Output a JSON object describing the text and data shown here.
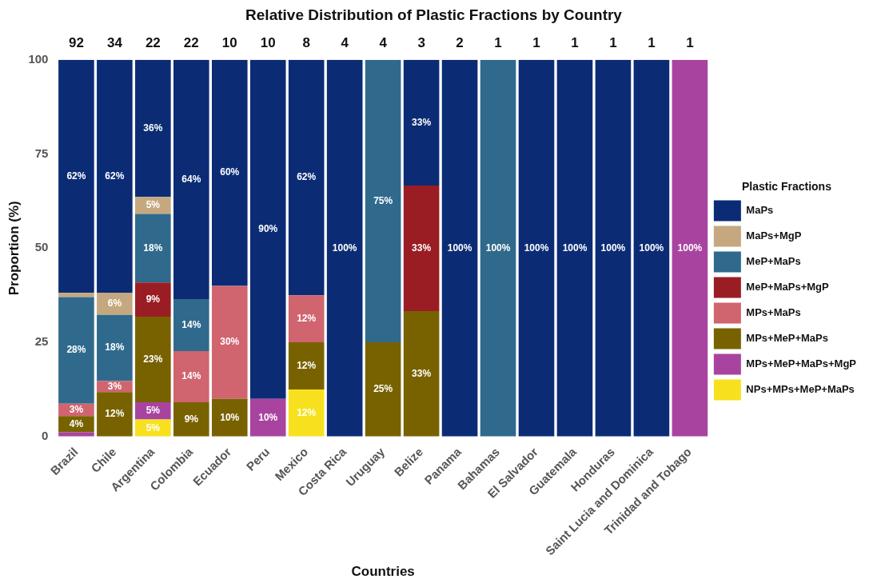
{
  "chart_data": {
    "type": "bar",
    "title": "Relative Distribution of Plastic Fractions by Country",
    "xlabel": "Countries",
    "ylabel": "Proportion (%)",
    "legend_title": "Plastic Fractions",
    "categories": [
      "Brazil",
      "Chile",
      "Argentina",
      "Colombia",
      "Ecuador",
      "Peru",
      "Mexico",
      "Costa Rica",
      "Uruguay",
      "Belize",
      "Panama",
      "Bahamas",
      "El Salvador",
      "Guatemala",
      "Honduras",
      "Saint Lucia and Dominica",
      "Trinidad and Tobago"
    ],
    "stacked": true,
    "legend": "right",
    "ylim": [
      0,
      100
    ],
    "yticks": [
      0,
      25,
      50,
      75,
      100
    ],
    "series": [
      {
        "name": "NPs+MPs+MeP+MaPs",
        "color": "#f7e11e",
        "values": [
          null,
          null,
          4.5,
          null,
          null,
          null,
          12.5,
          null,
          null,
          null,
          null,
          null,
          null,
          null,
          null,
          null,
          null
        ],
        "value_labels": [
          null,
          null,
          "5%",
          null,
          null,
          null,
          "12%",
          null,
          null,
          null,
          null,
          null,
          null,
          null,
          null,
          null,
          null
        ]
      },
      {
        "name": "MPs+MeP+MaPs+MgP",
        "color": "#a8449f",
        "values": [
          1.1,
          null,
          4.6,
          null,
          null,
          10,
          null,
          null,
          null,
          null,
          null,
          null,
          null,
          null,
          null,
          null,
          100
        ],
        "value_labels": [
          null,
          null,
          "5%",
          null,
          null,
          "10%",
          null,
          null,
          null,
          null,
          null,
          null,
          null,
          null,
          null,
          null,
          "100%"
        ]
      },
      {
        "name": "MPs+MeP+MaPs",
        "color": "#786200",
        "values": [
          4.3,
          11.8,
          22.7,
          9.1,
          10,
          null,
          12.5,
          null,
          25,
          33.3,
          null,
          null,
          null,
          null,
          null,
          null,
          null
        ],
        "value_labels": [
          "4%",
          "12%",
          "23%",
          "9%",
          "10%",
          null,
          "12%",
          null,
          "25%",
          "33%",
          null,
          null,
          null,
          null,
          null,
          null,
          null
        ]
      },
      {
        "name": "MPs+MaPs",
        "color": "#d0646f",
        "values": [
          3.3,
          2.9,
          null,
          13.6,
          30,
          null,
          12.5,
          null,
          null,
          null,
          null,
          null,
          null,
          null,
          null,
          null,
          null
        ],
        "value_labels": [
          "3%",
          "3%",
          null,
          "14%",
          "30%",
          null,
          "12%",
          null,
          null,
          null,
          null,
          null,
          null,
          null,
          null,
          null,
          null
        ]
      },
      {
        "name": "MeP+MaPs+MgP",
        "color": "#9a1d24",
        "values": [
          null,
          null,
          9.1,
          null,
          null,
          null,
          null,
          null,
          null,
          33.3,
          null,
          null,
          null,
          null,
          null,
          null,
          null
        ],
        "value_labels": [
          null,
          null,
          "9%",
          null,
          null,
          null,
          null,
          null,
          null,
          "33%",
          null,
          null,
          null,
          null,
          null,
          null,
          null
        ]
      },
      {
        "name": "MeP+MaPs",
        "color": "#2f6a8c",
        "values": [
          28.3,
          17.6,
          18.2,
          13.6,
          null,
          null,
          null,
          null,
          75,
          null,
          null,
          100,
          null,
          null,
          null,
          null,
          null
        ],
        "value_labels": [
          "28%",
          "18%",
          "18%",
          "14%",
          null,
          null,
          null,
          null,
          "75%",
          null,
          null,
          "100%",
          null,
          null,
          null,
          null,
          null
        ]
      },
      {
        "name": "MaPs+MgP",
        "color": "#c5a87f",
        "values": [
          1.1,
          5.9,
          4.5,
          null,
          null,
          null,
          null,
          null,
          null,
          null,
          null,
          null,
          null,
          null,
          null,
          null,
          null
        ],
        "value_labels": [
          null,
          "6%",
          "5%",
          null,
          null,
          null,
          null,
          null,
          null,
          null,
          null,
          null,
          null,
          null,
          null,
          null,
          null
        ]
      },
      {
        "name": "MaPs",
        "color": "#0b2c75",
        "values": [
          61.9,
          61.8,
          36.4,
          63.7,
          60,
          90,
          62.5,
          100,
          null,
          33.4,
          100,
          null,
          100,
          100,
          100,
          100,
          null
        ],
        "value_labels": [
          "62%",
          "62%",
          "36%",
          "64%",
          "60%",
          "90%",
          "62%",
          "100%",
          null,
          "33%",
          "100%",
          null,
          "100%",
          "100%",
          "100%",
          "100%",
          null
        ]
      }
    ],
    "annotations": [
      {
        "text": "92",
        "x": "Brazil",
        "y": 100
      },
      {
        "text": "34",
        "x": "Chile",
        "y": 100
      },
      {
        "text": "22",
        "x": "Argentina",
        "y": 100
      },
      {
        "text": "22",
        "x": "Colombia",
        "y": 100
      },
      {
        "text": "10",
        "x": "Ecuador",
        "y": 100
      },
      {
        "text": "10",
        "x": "Peru",
        "y": 100
      },
      {
        "text": "8",
        "x": "Mexico",
        "y": 100
      },
      {
        "text": "4",
        "x": "Costa Rica",
        "y": 100
      },
      {
        "text": "4",
        "x": "Uruguay",
        "y": 100
      },
      {
        "text": "3",
        "x": "Belize",
        "y": 100
      },
      {
        "text": "2",
        "x": "Panama",
        "y": 100
      },
      {
        "text": "1",
        "x": "Bahamas",
        "y": 100
      },
      {
        "text": "1",
        "x": "El Salvador",
        "y": 100
      },
      {
        "text": "1",
        "x": "Guatemala",
        "y": 100
      },
      {
        "text": "1",
        "x": "Honduras",
        "y": 100
      },
      {
        "text": "1",
        "x": "Saint Lucia and Dominica",
        "y": 100
      },
      {
        "text": "1",
        "x": "Trinidad and Tobago",
        "y": 100
      }
    ]
  }
}
